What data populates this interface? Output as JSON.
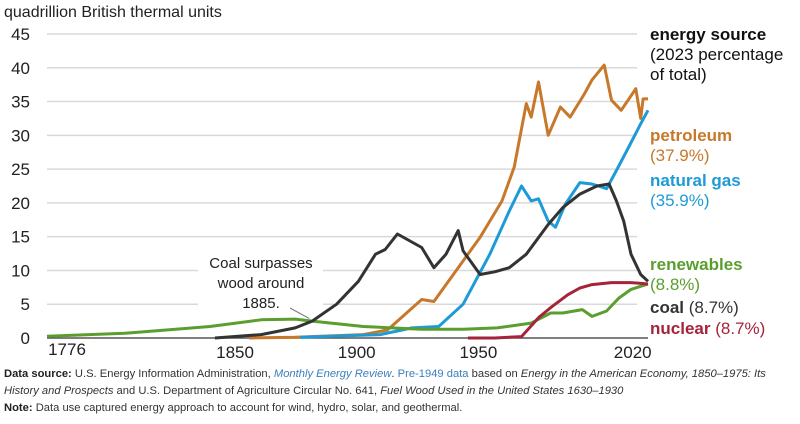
{
  "chart_data": {
    "type": "line",
    "ylabel": "quadrillion British thermal units",
    "ylim": [
      0,
      45
    ],
    "yticks": [
      "0",
      "5",
      "10",
      "15",
      "20",
      "25",
      "30",
      "35",
      "40",
      "45"
    ],
    "xlim": [
      1776,
      2023
    ],
    "xticks": [
      "1776",
      "1850",
      "1900",
      "1950",
      "2020"
    ],
    "grid": true,
    "legend": {
      "title": "energy source",
      "subtitle_lines": [
        "(2023 percentage",
        "of total)"
      ],
      "placement": "right"
    },
    "annotation": {
      "lines": [
        "Coal surpasses",
        "wood around",
        "1885."
      ],
      "year": 1885,
      "value": 2.6
    },
    "series": [
      {
        "name": "petroleum",
        "share": "(37.9%)",
        "color": "#C8782A",
        "points": [
          [
            1859,
            0
          ],
          [
            1878,
            0.1
          ],
          [
            1906,
            0.5
          ],
          [
            1916,
            1.2
          ],
          [
            1930,
            5.7
          ],
          [
            1935,
            5.4
          ],
          [
            1945,
            10.4
          ],
          [
            1954,
            14.9
          ],
          [
            1963,
            20.3
          ],
          [
            1968,
            25.3
          ],
          [
            1973,
            34.7
          ],
          [
            1975,
            32.7
          ],
          [
            1978,
            37.9
          ],
          [
            1982,
            30.0
          ],
          [
            1987,
            34.2
          ],
          [
            1991,
            32.7
          ],
          [
            1997,
            36.2
          ],
          [
            2000,
            38.2
          ],
          [
            2005,
            40.4
          ],
          [
            2008,
            35.2
          ],
          [
            2012,
            33.7
          ],
          [
            2018,
            36.9
          ],
          [
            2020,
            32.5
          ],
          [
            2021,
            35.4
          ],
          [
            2023,
            35.4
          ]
        ]
      },
      {
        "name": "natural gas",
        "share": "(35.9%)",
        "color": "#1E9BD7",
        "points": [
          [
            1880,
            0.1
          ],
          [
            1913,
            0.5
          ],
          [
            1926,
            1.5
          ],
          [
            1937,
            1.7
          ],
          [
            1947,
            5.0
          ],
          [
            1958,
            12.4
          ],
          [
            1966,
            18.8
          ],
          [
            1971,
            22.5
          ],
          [
            1975,
            20.3
          ],
          [
            1978,
            20.6
          ],
          [
            1982,
            17.3
          ],
          [
            1985,
            16.4
          ],
          [
            1989,
            19.8
          ],
          [
            1995,
            23.0
          ],
          [
            2000,
            22.8
          ],
          [
            2006,
            22.1
          ],
          [
            2010,
            24.8
          ],
          [
            2015,
            28.2
          ],
          [
            2020,
            31.7
          ],
          [
            2023,
            33.7
          ]
        ]
      },
      {
        "name": "renewables",
        "share": "(8.8%)",
        "color": "#5A9E2E",
        "points": [
          [
            1776,
            0.25
          ],
          [
            1808,
            0.7
          ],
          [
            1843,
            1.7
          ],
          [
            1864,
            2.7
          ],
          [
            1878,
            2.8
          ],
          [
            1885,
            2.5
          ],
          [
            1906,
            1.7
          ],
          [
            1930,
            1.3
          ],
          [
            1947,
            1.3
          ],
          [
            1961,
            1.5
          ],
          [
            1975,
            2.2
          ],
          [
            1983,
            3.7
          ],
          [
            1988,
            3.7
          ],
          [
            1996,
            4.2
          ],
          [
            2000,
            3.2
          ],
          [
            2006,
            4.0
          ],
          [
            2011,
            5.9
          ],
          [
            2016,
            7.2
          ],
          [
            2023,
            8.0
          ]
        ]
      },
      {
        "name": "coal",
        "share": "(8.7%)",
        "color": "#333333",
        "points": [
          [
            1845,
            0
          ],
          [
            1864,
            0.5
          ],
          [
            1878,
            1.5
          ],
          [
            1885,
            2.5
          ],
          [
            1895,
            5.0
          ],
          [
            1904,
            8.4
          ],
          [
            1911,
            12.4
          ],
          [
            1915,
            13.1
          ],
          [
            1920,
            15.4
          ],
          [
            1930,
            13.4
          ],
          [
            1935,
            10.4
          ],
          [
            1940,
            12.4
          ],
          [
            1945,
            15.9
          ],
          [
            1947,
            12.9
          ],
          [
            1954,
            9.4
          ],
          [
            1960,
            9.8
          ],
          [
            1966,
            10.4
          ],
          [
            1973,
            12.4
          ],
          [
            1982,
            16.8
          ],
          [
            1988,
            19.3
          ],
          [
            1995,
            21.3
          ],
          [
            2002,
            22.5
          ],
          [
            2007,
            22.8
          ],
          [
            2010,
            20.3
          ],
          [
            2013,
            17.3
          ],
          [
            2016,
            12.4
          ],
          [
            2020,
            9.4
          ],
          [
            2023,
            8.4
          ]
        ]
      },
      {
        "name": "nuclear",
        "share": "(8.7%)",
        "color": "#A5243A",
        "points": [
          [
            1949,
            0
          ],
          [
            1960,
            0
          ],
          [
            1971,
            0.2
          ],
          [
            1978,
            3.0
          ],
          [
            1983,
            4.5
          ],
          [
            1990,
            6.4
          ],
          [
            1995,
            7.4
          ],
          [
            2000,
            7.9
          ],
          [
            2008,
            8.2
          ],
          [
            2016,
            8.2
          ],
          [
            2023,
            8.0
          ]
        ]
      }
    ]
  },
  "footnote": {
    "source_label": "Data source:",
    "source_text_1": " U.S. Energy Information Administration, ",
    "source_link_1": "Monthly Energy Review",
    "source_text_2": ". ",
    "source_link_2": "Pre-1949 data",
    "source_text_3": " based on ",
    "source_italic_1": "Energy in the American Economy, 1850–1975: Its History and Prospects",
    "source_text_4": " and U.S. Department of Agriculture Circular No. 641, ",
    "source_italic_2": "Fuel Wood Used in the United States 1630–1930",
    "note_label": "Note:",
    "note_text": " Data use captured energy approach to account for wind, hydro, solar, and geothermal."
  }
}
